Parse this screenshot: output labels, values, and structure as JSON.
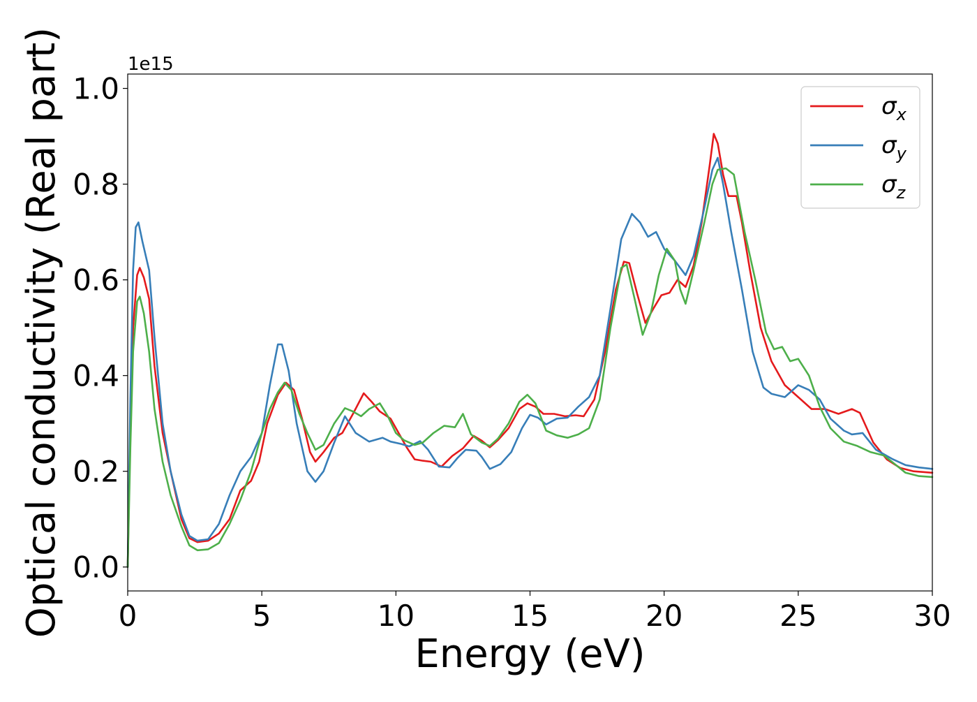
{
  "chart_data": {
    "type": "line",
    "title": "",
    "xlabel": "Energy (eV)",
    "ylabel": "Optical conductivity (Real part)",
    "y_offset_text": "1e15",
    "xlim": [
      0,
      30
    ],
    "ylim": [
      -0.05,
      1.03
    ],
    "x_ticks": [
      "0",
      "5",
      "10",
      "15",
      "20",
      "25",
      "30"
    ],
    "x_tick_values": [
      0,
      5,
      10,
      15,
      20,
      25,
      30
    ],
    "y_ticks": [
      "0.0",
      "0.2",
      "0.4",
      "0.6",
      "0.8",
      "1.0"
    ],
    "y_tick_values": [
      0,
      0.2,
      0.4,
      0.6,
      0.8,
      1.0
    ],
    "grid": false,
    "legend_position": "top-right",
    "series": [
      {
        "name": "σ_x",
        "legend_symbol": "σ",
        "legend_subscript": "x",
        "color": "#e41a1c",
        "points": [
          [
            0,
            0
          ],
          [
            0.1,
            0.3
          ],
          [
            0.2,
            0.5
          ],
          [
            0.35,
            0.61
          ],
          [
            0.45,
            0.625
          ],
          [
            0.6,
            0.605
          ],
          [
            0.8,
            0.56
          ],
          [
            1.0,
            0.42
          ],
          [
            1.3,
            0.28
          ],
          [
            1.6,
            0.2
          ],
          [
            2.0,
            0.1
          ],
          [
            2.3,
            0.06
          ],
          [
            2.6,
            0.052
          ],
          [
            3.0,
            0.055
          ],
          [
            3.4,
            0.07
          ],
          [
            3.8,
            0.1
          ],
          [
            4.2,
            0.16
          ],
          [
            4.6,
            0.18
          ],
          [
            4.9,
            0.22
          ],
          [
            5.2,
            0.3
          ],
          [
            5.6,
            0.36
          ],
          [
            5.9,
            0.385
          ],
          [
            6.2,
            0.37
          ],
          [
            6.5,
            0.31
          ],
          [
            6.8,
            0.24
          ],
          [
            7.0,
            0.22
          ],
          [
            7.3,
            0.24
          ],
          [
            7.7,
            0.27
          ],
          [
            8.0,
            0.28
          ],
          [
            8.4,
            0.32
          ],
          [
            8.8,
            0.363
          ],
          [
            9.1,
            0.345
          ],
          [
            9.4,
            0.325
          ],
          [
            9.8,
            0.31
          ],
          [
            10.1,
            0.28
          ],
          [
            10.4,
            0.25
          ],
          [
            10.7,
            0.225
          ],
          [
            11.0,
            0.222
          ],
          [
            11.3,
            0.22
          ],
          [
            11.7,
            0.21
          ],
          [
            12.1,
            0.232
          ],
          [
            12.5,
            0.248
          ],
          [
            12.9,
            0.274
          ],
          [
            13.2,
            0.264
          ],
          [
            13.5,
            0.25
          ],
          [
            13.8,
            0.265
          ],
          [
            14.2,
            0.29
          ],
          [
            14.6,
            0.33
          ],
          [
            14.9,
            0.342
          ],
          [
            15.2,
            0.335
          ],
          [
            15.5,
            0.32
          ],
          [
            15.9,
            0.32
          ],
          [
            16.3,
            0.315
          ],
          [
            16.7,
            0.317
          ],
          [
            17.0,
            0.315
          ],
          [
            17.4,
            0.35
          ],
          [
            17.8,
            0.45
          ],
          [
            18.2,
            0.58
          ],
          [
            18.5,
            0.638
          ],
          [
            18.7,
            0.635
          ],
          [
            19.0,
            0.57
          ],
          [
            19.3,
            0.51
          ],
          [
            19.6,
            0.54
          ],
          [
            19.9,
            0.568
          ],
          [
            20.2,
            0.573
          ],
          [
            20.5,
            0.6
          ],
          [
            20.8,
            0.585
          ],
          [
            21.1,
            0.63
          ],
          [
            21.4,
            0.72
          ],
          [
            21.7,
            0.84
          ],
          [
            21.85,
            0.905
          ],
          [
            22.0,
            0.885
          ],
          [
            22.2,
            0.82
          ],
          [
            22.4,
            0.775
          ],
          [
            22.7,
            0.775
          ],
          [
            22.9,
            0.72
          ],
          [
            23.2,
            0.62
          ],
          [
            23.6,
            0.5
          ],
          [
            24.0,
            0.43
          ],
          [
            24.5,
            0.38
          ],
          [
            25.0,
            0.355
          ],
          [
            25.5,
            0.33
          ],
          [
            26.0,
            0.33
          ],
          [
            26.5,
            0.32
          ],
          [
            27.0,
            0.33
          ],
          [
            27.3,
            0.322
          ],
          [
            27.8,
            0.26
          ],
          [
            28.3,
            0.225
          ],
          [
            28.8,
            0.207
          ],
          [
            29.3,
            0.2
          ],
          [
            30.0,
            0.197
          ]
        ]
      },
      {
        "name": "σ_y",
        "legend_symbol": "σ",
        "legend_subscript": "y",
        "color": "#377eb8",
        "points": [
          [
            0,
            0
          ],
          [
            0.1,
            0.35
          ],
          [
            0.2,
            0.62
          ],
          [
            0.3,
            0.71
          ],
          [
            0.4,
            0.72
          ],
          [
            0.55,
            0.68
          ],
          [
            0.8,
            0.62
          ],
          [
            1.0,
            0.48
          ],
          [
            1.3,
            0.3
          ],
          [
            1.6,
            0.2
          ],
          [
            2.0,
            0.11
          ],
          [
            2.3,
            0.065
          ],
          [
            2.6,
            0.055
          ],
          [
            3.0,
            0.058
          ],
          [
            3.4,
            0.09
          ],
          [
            3.8,
            0.15
          ],
          [
            4.2,
            0.2
          ],
          [
            4.6,
            0.23
          ],
          [
            5.0,
            0.28
          ],
          [
            5.3,
            0.38
          ],
          [
            5.6,
            0.465
          ],
          [
            5.75,
            0.465
          ],
          [
            6.0,
            0.41
          ],
          [
            6.3,
            0.3
          ],
          [
            6.7,
            0.2
          ],
          [
            7.0,
            0.178
          ],
          [
            7.3,
            0.2
          ],
          [
            7.7,
            0.26
          ],
          [
            8.1,
            0.315
          ],
          [
            8.5,
            0.28
          ],
          [
            9.0,
            0.262
          ],
          [
            9.5,
            0.27
          ],
          [
            9.8,
            0.262
          ],
          [
            10.2,
            0.257
          ],
          [
            10.5,
            0.252
          ],
          [
            10.9,
            0.263
          ],
          [
            11.2,
            0.245
          ],
          [
            11.6,
            0.21
          ],
          [
            12.0,
            0.208
          ],
          [
            12.3,
            0.228
          ],
          [
            12.6,
            0.245
          ],
          [
            13.0,
            0.243
          ],
          [
            13.2,
            0.23
          ],
          [
            13.5,
            0.205
          ],
          [
            13.9,
            0.215
          ],
          [
            14.3,
            0.24
          ],
          [
            14.7,
            0.29
          ],
          [
            15.0,
            0.318
          ],
          [
            15.3,
            0.312
          ],
          [
            15.6,
            0.298
          ],
          [
            16.0,
            0.31
          ],
          [
            16.4,
            0.312
          ],
          [
            16.8,
            0.335
          ],
          [
            17.2,
            0.355
          ],
          [
            17.6,
            0.4
          ],
          [
            18.0,
            0.54
          ],
          [
            18.4,
            0.685
          ],
          [
            18.8,
            0.738
          ],
          [
            19.1,
            0.72
          ],
          [
            19.4,
            0.69
          ],
          [
            19.7,
            0.7
          ],
          [
            20.0,
            0.665
          ],
          [
            20.4,
            0.64
          ],
          [
            20.8,
            0.61
          ],
          [
            21.1,
            0.65
          ],
          [
            21.5,
            0.75
          ],
          [
            21.8,
            0.83
          ],
          [
            22.0,
            0.855
          ],
          [
            22.2,
            0.8
          ],
          [
            22.5,
            0.7
          ],
          [
            22.9,
            0.58
          ],
          [
            23.3,
            0.45
          ],
          [
            23.7,
            0.375
          ],
          [
            24.0,
            0.362
          ],
          [
            24.5,
            0.355
          ],
          [
            25.0,
            0.38
          ],
          [
            25.4,
            0.37
          ],
          [
            25.8,
            0.35
          ],
          [
            26.2,
            0.31
          ],
          [
            26.7,
            0.285
          ],
          [
            27.0,
            0.277
          ],
          [
            27.4,
            0.28
          ],
          [
            27.9,
            0.245
          ],
          [
            28.5,
            0.226
          ],
          [
            29.0,
            0.213
          ],
          [
            29.5,
            0.208
          ],
          [
            30.0,
            0.205
          ]
        ]
      },
      {
        "name": "σ_z",
        "legend_symbol": "σ",
        "legend_subscript": "z",
        "color": "#4daf4a",
        "points": [
          [
            0,
            0
          ],
          [
            0.1,
            0.25
          ],
          [
            0.2,
            0.45
          ],
          [
            0.35,
            0.555
          ],
          [
            0.45,
            0.565
          ],
          [
            0.6,
            0.53
          ],
          [
            0.8,
            0.45
          ],
          [
            1.0,
            0.33
          ],
          [
            1.3,
            0.22
          ],
          [
            1.6,
            0.15
          ],
          [
            2.0,
            0.085
          ],
          [
            2.3,
            0.045
          ],
          [
            2.6,
            0.035
          ],
          [
            3.0,
            0.037
          ],
          [
            3.4,
            0.05
          ],
          [
            3.8,
            0.09
          ],
          [
            4.2,
            0.14
          ],
          [
            4.6,
            0.2
          ],
          [
            5.0,
            0.28
          ],
          [
            5.3,
            0.33
          ],
          [
            5.6,
            0.365
          ],
          [
            5.85,
            0.385
          ],
          [
            6.1,
            0.37
          ],
          [
            6.4,
            0.32
          ],
          [
            6.7,
            0.28
          ],
          [
            7.0,
            0.245
          ],
          [
            7.3,
            0.255
          ],
          [
            7.7,
            0.3
          ],
          [
            8.1,
            0.332
          ],
          [
            8.4,
            0.325
          ],
          [
            8.7,
            0.315
          ],
          [
            9.0,
            0.33
          ],
          [
            9.4,
            0.342
          ],
          [
            9.7,
            0.315
          ],
          [
            10.0,
            0.28
          ],
          [
            10.3,
            0.265
          ],
          [
            10.7,
            0.255
          ],
          [
            11.0,
            0.26
          ],
          [
            11.4,
            0.28
          ],
          [
            11.8,
            0.295
          ],
          [
            12.2,
            0.292
          ],
          [
            12.5,
            0.32
          ],
          [
            12.8,
            0.277
          ],
          [
            13.2,
            0.26
          ],
          [
            13.5,
            0.253
          ],
          [
            13.8,
            0.268
          ],
          [
            14.2,
            0.3
          ],
          [
            14.6,
            0.345
          ],
          [
            14.9,
            0.36
          ],
          [
            15.2,
            0.342
          ],
          [
            15.6,
            0.285
          ],
          [
            16.0,
            0.275
          ],
          [
            16.4,
            0.27
          ],
          [
            16.8,
            0.277
          ],
          [
            17.2,
            0.29
          ],
          [
            17.6,
            0.35
          ],
          [
            18.0,
            0.5
          ],
          [
            18.4,
            0.625
          ],
          [
            18.6,
            0.632
          ],
          [
            18.9,
            0.56
          ],
          [
            19.2,
            0.485
          ],
          [
            19.5,
            0.53
          ],
          [
            19.8,
            0.61
          ],
          [
            20.1,
            0.665
          ],
          [
            20.4,
            0.64
          ],
          [
            20.6,
            0.58
          ],
          [
            20.8,
            0.55
          ],
          [
            21.1,
            0.62
          ],
          [
            21.5,
            0.72
          ],
          [
            21.8,
            0.8
          ],
          [
            22.0,
            0.83
          ],
          [
            22.3,
            0.833
          ],
          [
            22.6,
            0.82
          ],
          [
            23.0,
            0.7
          ],
          [
            23.4,
            0.6
          ],
          [
            23.8,
            0.49
          ],
          [
            24.1,
            0.455
          ],
          [
            24.4,
            0.46
          ],
          [
            24.7,
            0.43
          ],
          [
            25.0,
            0.435
          ],
          [
            25.4,
            0.4
          ],
          [
            25.8,
            0.335
          ],
          [
            26.2,
            0.29
          ],
          [
            26.7,
            0.262
          ],
          [
            27.2,
            0.253
          ],
          [
            27.7,
            0.24
          ],
          [
            28.2,
            0.233
          ],
          [
            28.6,
            0.215
          ],
          [
            29.0,
            0.197
          ],
          [
            29.5,
            0.19
          ],
          [
            30.0,
            0.188
          ]
        ]
      }
    ]
  }
}
